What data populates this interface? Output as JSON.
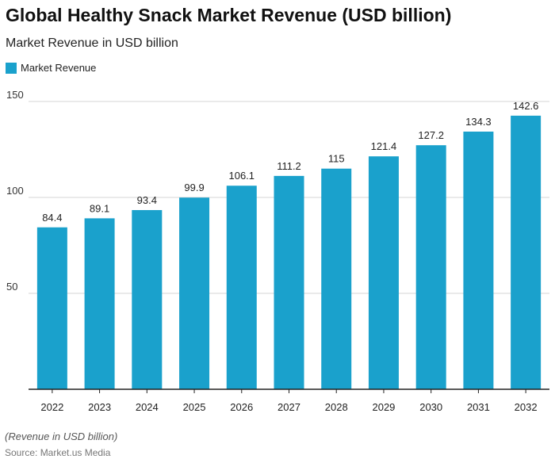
{
  "title": "Global Healthy Snack Market Revenue (USD billion)",
  "subtitle": "Market Revenue in USD billion",
  "note": "(Revenue in USD billion)",
  "source": "Source: Market.us Media",
  "colors": {
    "bar": "#1aa1cc"
  },
  "chart_data": {
    "type": "bar",
    "categories": [
      "2022",
      "2023",
      "2024",
      "2025",
      "2026",
      "2027",
      "2028",
      "2029",
      "2030",
      "2031",
      "2032"
    ],
    "series": [
      {
        "name": "Market Revenue",
        "values": [
          84.4,
          89.1,
          93.4,
          99.9,
          106.1,
          111.2,
          115,
          121.4,
          127.2,
          134.3,
          142.6
        ]
      }
    ],
    "ylim": [
      0,
      150
    ],
    "yticks": [
      50,
      100,
      150
    ],
    "grid": true,
    "legend": "top-left",
    "data_labels": true
  }
}
